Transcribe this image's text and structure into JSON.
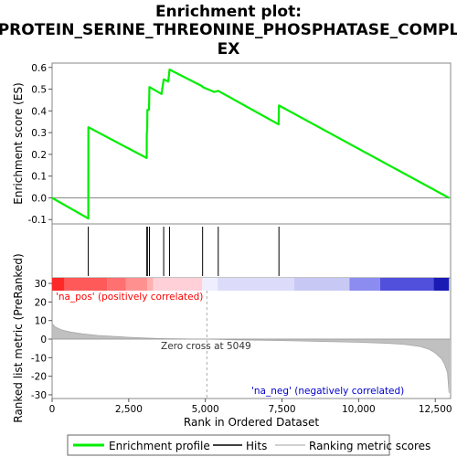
{
  "chart_data": {
    "type": "line",
    "title_lines": [
      "Enrichment plot:",
      "PROTEIN_SERINE_THREONINE_PHOSPHATASE_COMPL",
      "EX"
    ],
    "xlabel": "Rank in Ordered Dataset",
    "es_panel": {
      "ylabel": "Enrichment score (ES)",
      "ylim": [
        -0.12,
        0.62
      ],
      "yticks": [
        "-0.1",
        "0.0",
        "0.1",
        "0.2",
        "0.3",
        "0.4",
        "0.5",
        "0.6"
      ],
      "ytick_values": [
        -0.1,
        0.0,
        0.1,
        0.2,
        0.3,
        0.4,
        0.5,
        0.6
      ],
      "series": [
        {
          "name": "Enrichment profile",
          "color": "#00ee00",
          "x": [
            0,
            1180,
            1185,
            3085,
            3090,
            3100,
            3110,
            3160,
            3175,
            3570,
            3640,
            3790,
            3830,
            4900,
            4910,
            5290,
            5420,
            7390,
            7400,
            12950
          ],
          "y": [
            0.0,
            -0.095,
            0.325,
            0.183,
            0.295,
            0.31,
            0.405,
            0.405,
            0.51,
            0.478,
            0.545,
            0.535,
            0.59,
            0.513,
            0.51,
            0.487,
            0.492,
            0.338,
            0.425,
            0.0
          ]
        }
      ]
    },
    "hits": {
      "name": "Hits",
      "x": [
        1180,
        3090,
        3110,
        3175,
        3640,
        3830,
        4910,
        5420,
        7400
      ]
    },
    "metric_panel": {
      "ylabel": "Ranked list metric (PreRanked)",
      "ylim": [
        -32,
        33
      ],
      "yticks": [
        "30",
        "20",
        "10",
        "0",
        "-10",
        "-20",
        "-30"
      ],
      "ytick_values": [
        30,
        20,
        10,
        0,
        -10,
        -20,
        -30
      ],
      "series": [
        {
          "name": "Ranking metric scores",
          "color": "#c0c0c0",
          "x": [
            0,
            100,
            300,
            600,
            1000,
            1500,
            2000,
            2500,
            3000,
            3500,
            4000,
            4500,
            5049,
            6000,
            7000,
            8000,
            9000,
            10000,
            11000,
            11500,
            12000,
            12300,
            12500,
            12700,
            12800,
            12900,
            12950
          ],
          "y": [
            8.5,
            6.5,
            5.0,
            3.8,
            2.8,
            2.0,
            1.5,
            1.0,
            0.6,
            0.3,
            0.15,
            0.05,
            0.0,
            -0.4,
            -0.7,
            -1.0,
            -1.3,
            -1.7,
            -2.3,
            -2.9,
            -4.0,
            -5.5,
            -7.5,
            -10.5,
            -13.5,
            -18.0,
            -29.0
          ]
        }
      ]
    },
    "xlim": [
      0,
      13000
    ],
    "xticks": [
      "0",
      "2,500",
      "5,000",
      "7,500",
      "10,000",
      "12,500"
    ],
    "xtick_values": [
      0,
      2500,
      5000,
      7500,
      10000,
      12500
    ],
    "annotations": {
      "pos": "'na_pos' (positively correlated)",
      "neg": "'na_neg' (negatively correlated)",
      "zero_cross": "Zero cross at 5049",
      "zero_cross_x": 5049
    },
    "colors": {
      "pos_text": "#ff0000",
      "neg_text": "#0000cc",
      "hit_line": "#000000"
    },
    "heat_band": [
      {
        "from": 0,
        "to": 400,
        "color": "#ff2828"
      },
      {
        "from": 400,
        "to": 1800,
        "color": "#ff5a5a"
      },
      {
        "from": 1800,
        "to": 2400,
        "color": "#ff7070"
      },
      {
        "from": 2400,
        "to": 3100,
        "color": "#ff9090"
      },
      {
        "from": 3100,
        "to": 3300,
        "color": "#ffb0b0"
      },
      {
        "from": 3300,
        "to": 4900,
        "color": "#ffd0d8"
      },
      {
        "from": 4900,
        "to": 5400,
        "color": "#eeeeff"
      },
      {
        "from": 5400,
        "to": 7900,
        "color": "#dcdcfa"
      },
      {
        "from": 7900,
        "to": 9700,
        "color": "#c8c8f5"
      },
      {
        "from": 9700,
        "to": 10700,
        "color": "#8c8cf0"
      },
      {
        "from": 10700,
        "to": 12450,
        "color": "#5050dc"
      },
      {
        "from": 12450,
        "to": 12950,
        "color": "#1a1ab4"
      }
    ],
    "legend": {
      "items": [
        {
          "label": "Enrichment profile",
          "color": "#00ee00"
        },
        {
          "label": "Hits",
          "color": "#000000"
        },
        {
          "label": "Ranking metric scores",
          "color": "#c0c0c0"
        }
      ]
    }
  }
}
